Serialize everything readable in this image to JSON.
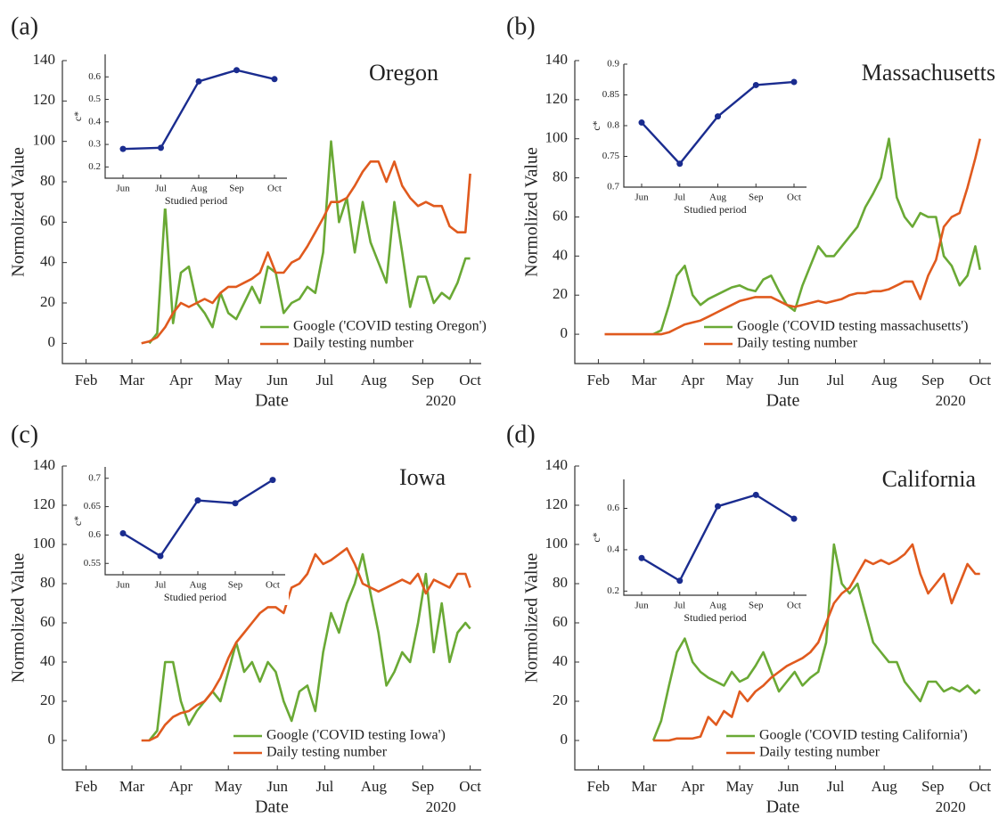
{
  "chart_data": [
    {
      "type": "line",
      "panel_label": "(a)",
      "title": "Oregon",
      "x_label": "Date",
      "year_label": "2020",
      "y_label": "Normolized Value",
      "x": [
        67,
        72,
        77,
        82,
        87,
        92,
        97,
        102,
        107,
        112,
        117,
        122,
        127,
        132,
        137,
        142,
        147,
        152,
        157,
        162,
        167,
        172,
        177,
        182,
        187,
        192,
        197,
        202,
        207,
        212,
        217,
        222,
        227,
        232,
        237,
        242,
        247,
        252,
        257,
        262,
        267,
        272,
        275
      ],
      "xlim": [
        17,
        282
      ],
      "xticks": [
        {
          "value": 32,
          "label": "Feb"
        },
        {
          "value": 61,
          "label": "Mar"
        },
        {
          "value": 92,
          "label": "Apr"
        },
        {
          "value": 122,
          "label": "May"
        },
        {
          "value": 153,
          "label": "Jun"
        },
        {
          "value": 183,
          "label": "Jul"
        },
        {
          "value": 214,
          "label": "Aug"
        },
        {
          "value": 245,
          "label": "Sep"
        },
        {
          "value": 275,
          "label": "Oct"
        }
      ],
      "ylim": [
        -10,
        140
      ],
      "yticks": [
        0,
        20,
        40,
        60,
        80,
        100,
        120,
        140
      ],
      "series": [
        {
          "name": "Google ('COVID testing Oregon')",
          "color": "#6aa935",
          "values": [
            null,
            0,
            5,
            68,
            10,
            35,
            38,
            20,
            15,
            8,
            25,
            15,
            12,
            20,
            28,
            20,
            38,
            35,
            15,
            20,
            22,
            28,
            25,
            45,
            100,
            60,
            72,
            45,
            70,
            50,
            40,
            30,
            70,
            45,
            18,
            33,
            33,
            20,
            25,
            22,
            30,
            42,
            42
          ]
        },
        {
          "name": "Daily testing number",
          "color": "#e05a1e",
          "values": [
            0,
            1,
            3,
            8,
            15,
            20,
            18,
            20,
            22,
            20,
            25,
            28,
            28,
            30,
            32,
            35,
            45,
            35,
            35,
            40,
            42,
            48,
            55,
            62,
            70,
            70,
            72,
            78,
            85,
            90,
            90,
            80,
            90,
            78,
            72,
            68,
            70,
            68,
            68,
            58,
            55,
            55,
            84
          ]
        }
      ],
      "inset": {
        "type": "line",
        "categories": [
          "Jun",
          "Jul",
          "Aug",
          "Sep",
          "Oct"
        ],
        "values": [
          0.28,
          0.285,
          0.58,
          0.63,
          0.59
        ],
        "color": "#1a2c8f",
        "ylim": [
          0.15,
          0.7
        ],
        "yticks": [
          0.2,
          0.3,
          0.4,
          0.5,
          0.6
        ],
        "y_label": "c*",
        "x_label": "Studied period"
      }
    },
    {
      "type": "line",
      "panel_label": "(b)",
      "title": "Massachusetts",
      "x_label": "Date",
      "year_label": "2020",
      "y_label": "Normolized Value",
      "x": [
        36,
        46,
        56,
        67,
        72,
        77,
        82,
        87,
        92,
        97,
        102,
        107,
        112,
        117,
        122,
        127,
        132,
        137,
        142,
        147,
        152,
        157,
        162,
        167,
        172,
        177,
        182,
        187,
        192,
        197,
        202,
        207,
        212,
        217,
        222,
        227,
        232,
        237,
        242,
        247,
        252,
        257,
        262,
        267,
        272,
        275
      ],
      "xlim": [
        17,
        282
      ],
      "xticks": [
        {
          "value": 32,
          "label": "Feb"
        },
        {
          "value": 61,
          "label": "Mar"
        },
        {
          "value": 92,
          "label": "Apr"
        },
        {
          "value": 122,
          "label": "May"
        },
        {
          "value": 153,
          "label": "Jun"
        },
        {
          "value": 183,
          "label": "Jul"
        },
        {
          "value": 214,
          "label": "Aug"
        },
        {
          "value": 245,
          "label": "Sep"
        },
        {
          "value": 275,
          "label": "Oct"
        }
      ],
      "ylim": [
        -15,
        140
      ],
      "yticks": [
        0,
        20,
        40,
        60,
        80,
        100,
        120,
        140
      ],
      "series": [
        {
          "name": "Google ('COVID testing massachusetts')",
          "color": "#6aa935",
          "values": [
            null,
            null,
            null,
            0,
            2,
            15,
            30,
            35,
            20,
            15,
            18,
            20,
            22,
            24,
            25,
            23,
            22,
            28,
            30,
            22,
            15,
            12,
            25,
            35,
            45,
            40,
            40,
            45,
            50,
            55,
            65,
            72,
            80,
            100,
            70,
            60,
            55,
            62,
            60,
            60,
            40,
            35,
            25,
            30,
            45,
            33
          ]
        },
        {
          "name": "Daily testing number",
          "color": "#e05a1e",
          "values": [
            0,
            0,
            0,
            0,
            0,
            1,
            3,
            5,
            6,
            7,
            9,
            11,
            13,
            15,
            17,
            18,
            19,
            19,
            19,
            17,
            15,
            14,
            15,
            16,
            17,
            16,
            17,
            18,
            20,
            21,
            21,
            22,
            22,
            23,
            25,
            27,
            27,
            18,
            30,
            38,
            55,
            60,
            62,
            75,
            90,
            100
          ]
        }
      ],
      "inset": {
        "type": "line",
        "categories": [
          "Jun",
          "Jul",
          "Aug",
          "Sep",
          "Oct"
        ],
        "values": [
          0.805,
          0.738,
          0.815,
          0.866,
          0.871
        ],
        "color": "#1a2c8f",
        "ylim": [
          0.7,
          0.9
        ],
        "yticks": [
          0.7,
          0.75,
          0.8,
          0.85,
          0.9
        ],
        "y_label": "c*",
        "x_label": "Studied period"
      }
    },
    {
      "type": "line",
      "panel_label": "(c)",
      "title": "Iowa",
      "x_label": "Date",
      "year_label": "2020",
      "y_label": "Normolized Value",
      "x": [
        67,
        72,
        77,
        82,
        87,
        92,
        97,
        102,
        107,
        112,
        117,
        122,
        127,
        132,
        137,
        142,
        147,
        152,
        157,
        162,
        167,
        172,
        177,
        182,
        187,
        192,
        197,
        202,
        207,
        212,
        217,
        222,
        227,
        232,
        237,
        242,
        247,
        252,
        257,
        262,
        267,
        272,
        275
      ],
      "xlim": [
        17,
        282
      ],
      "xticks": [
        {
          "value": 32,
          "label": "Feb"
        },
        {
          "value": 61,
          "label": "Mar"
        },
        {
          "value": 92,
          "label": "Apr"
        },
        {
          "value": 122,
          "label": "May"
        },
        {
          "value": 153,
          "label": "Jun"
        },
        {
          "value": 183,
          "label": "Jul"
        },
        {
          "value": 214,
          "label": "Aug"
        },
        {
          "value": 245,
          "label": "Sep"
        },
        {
          "value": 275,
          "label": "Oct"
        }
      ],
      "ylim": [
        -15,
        140
      ],
      "yticks": [
        0,
        20,
        40,
        60,
        80,
        100,
        120,
        140
      ],
      "series": [
        {
          "name": "Google ('COVID testing Iowa')",
          "color": "#6aa935",
          "values": [
            null,
            0,
            5,
            40,
            40,
            20,
            8,
            15,
            20,
            25,
            20,
            35,
            50,
            35,
            40,
            30,
            40,
            35,
            20,
            10,
            25,
            28,
            15,
            45,
            65,
            55,
            70,
            80,
            95,
            75,
            55,
            28,
            35,
            45,
            40,
            60,
            85,
            45,
            70,
            40,
            55,
            60,
            57
          ]
        },
        {
          "name": "Daily testing number",
          "color": "#e05a1e",
          "values": [
            0,
            0,
            2,
            8,
            12,
            14,
            15,
            18,
            20,
            25,
            32,
            42,
            50,
            55,
            60,
            65,
            68,
            68,
            65,
            78,
            80,
            85,
            95,
            90,
            92,
            95,
            98,
            90,
            80,
            78,
            76,
            78,
            80,
            82,
            80,
            85,
            75,
            82,
            80,
            78,
            85,
            85,
            78
          ]
        }
      ],
      "inset": {
        "type": "line",
        "categories": [
          "Jun",
          "Jul",
          "Aug",
          "Sep",
          "Oct"
        ],
        "values": [
          0.603,
          0.563,
          0.661,
          0.656,
          0.697
        ],
        "color": "#1a2c8f",
        "ylim": [
          0.53,
          0.72
        ],
        "yticks": [
          0.55,
          0.6,
          0.65,
          0.7
        ],
        "y_label": "c*",
        "x_label": "Studied period"
      }
    },
    {
      "type": "line",
      "panel_label": "(d)",
      "title": "California",
      "x_label": "Date",
      "year_label": "2020",
      "y_label": "Normolized Value",
      "x": [
        67,
        72,
        77,
        82,
        87,
        92,
        97,
        102,
        107,
        112,
        117,
        122,
        127,
        132,
        137,
        142,
        147,
        152,
        157,
        162,
        167,
        172,
        177,
        182,
        187,
        192,
        197,
        202,
        207,
        212,
        217,
        222,
        227,
        232,
        237,
        242,
        247,
        252,
        257,
        262,
        267,
        272,
        275
      ],
      "xlim": [
        17,
        282
      ],
      "xticks": [
        {
          "value": 32,
          "label": "Feb"
        },
        {
          "value": 61,
          "label": "Mar"
        },
        {
          "value": 92,
          "label": "Apr"
        },
        {
          "value": 122,
          "label": "May"
        },
        {
          "value": 153,
          "label": "Jun"
        },
        {
          "value": 183,
          "label": "Jul"
        },
        {
          "value": 214,
          "label": "Aug"
        },
        {
          "value": 245,
          "label": "Sep"
        },
        {
          "value": 275,
          "label": "Oct"
        }
      ],
      "ylim": [
        -15,
        140
      ],
      "yticks": [
        0,
        20,
        40,
        60,
        80,
        100,
        120,
        140
      ],
      "series": [
        {
          "name": "Google ('COVID testing California')",
          "color": "#6aa935",
          "values": [
            0,
            10,
            28,
            45,
            52,
            40,
            35,
            32,
            30,
            28,
            35,
            30,
            32,
            38,
            45,
            35,
            25,
            30,
            35,
            28,
            32,
            35,
            50,
            100,
            80,
            75,
            80,
            65,
            50,
            45,
            40,
            40,
            30,
            25,
            20,
            30,
            30,
            25,
            27,
            25,
            28,
            24,
            26
          ]
        },
        {
          "name": "Daily testing number",
          "color": "#e05a1e",
          "values": [
            0,
            0,
            0,
            1,
            1,
            1,
            2,
            12,
            8,
            15,
            12,
            25,
            20,
            25,
            28,
            32,
            35,
            38,
            40,
            42,
            45,
            50,
            60,
            70,
            75,
            78,
            85,
            92,
            90,
            92,
            90,
            92,
            95,
            100,
            85,
            75,
            80,
            85,
            70,
            80,
            90,
            85,
            85
          ]
        }
      ],
      "inset": {
        "type": "line",
        "categories": [
          "Jun",
          "Jul",
          "Aug",
          "Sep",
          "Oct"
        ],
        "values": [
          0.36,
          0.25,
          0.61,
          0.665,
          0.55
        ],
        "color": "#1a2c8f",
        "ylim": [
          0.18,
          0.74
        ],
        "yticks": [
          0.2,
          0.4,
          0.6
        ],
        "y_label": "c*",
        "x_label": "Studied period"
      }
    }
  ]
}
